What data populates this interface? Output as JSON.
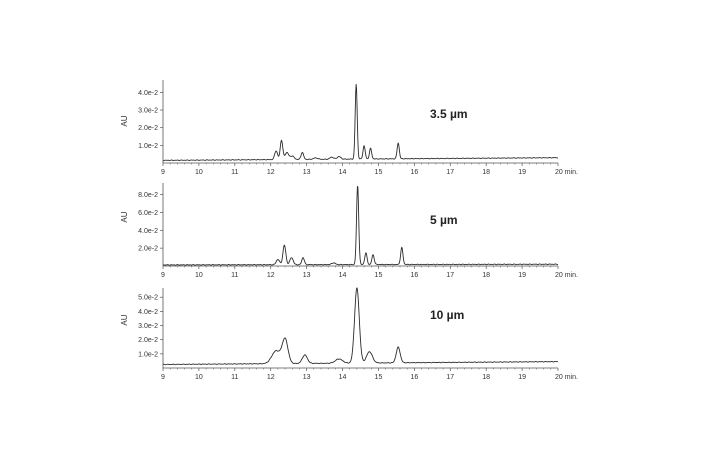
{
  "colors": {
    "trace": "#2b2b2b",
    "axis": "#555555"
  },
  "chart_data": [
    {
      "type": "line",
      "title": "3.5 µm",
      "ylabel": "AU",
      "xlim": [
        9,
        20
      ],
      "ylim": [
        0,
        0.047
      ],
      "x_ticks": [
        "9",
        "10",
        "11",
        "12",
        "13",
        "14",
        "15",
        "16",
        "17",
        "18",
        "19",
        "20 min."
      ],
      "y_ticks": [
        {
          "value": 0.01,
          "label": "1.0e-2"
        },
        {
          "value": 0.02,
          "label": "2.0e-2"
        },
        {
          "value": 0.03,
          "label": "3.0e-2"
        },
        {
          "value": 0.04,
          "label": "4.0e-2"
        }
      ],
      "baseline": {
        "start": 0.0015,
        "end": 0.003
      },
      "peaks": [
        {
          "x": 12.15,
          "height": 0.005,
          "width": 0.04
        },
        {
          "x": 12.3,
          "height": 0.011,
          "width": 0.035
        },
        {
          "x": 12.45,
          "height": 0.004,
          "width": 0.05
        },
        {
          "x": 12.6,
          "height": 0.002,
          "width": 0.05
        },
        {
          "x": 12.88,
          "height": 0.004,
          "width": 0.035
        },
        {
          "x": 13.25,
          "height": 0.0008,
          "width": 0.06
        },
        {
          "x": 13.7,
          "height": 0.0012,
          "width": 0.05
        },
        {
          "x": 13.9,
          "height": 0.0015,
          "width": 0.05
        },
        {
          "x": 14.38,
          "height": 0.0425,
          "width": 0.028
        },
        {
          "x": 14.6,
          "height": 0.0075,
          "width": 0.03
        },
        {
          "x": 14.78,
          "height": 0.006,
          "width": 0.03
        },
        {
          "x": 15.55,
          "height": 0.009,
          "width": 0.03
        }
      ]
    },
    {
      "type": "line",
      "title": "5 µm",
      "ylabel": "AU",
      "xlim": [
        9,
        20
      ],
      "ylim": [
        0,
        0.093
      ],
      "x_ticks": [
        "9",
        "10",
        "11",
        "12",
        "13",
        "14",
        "15",
        "16",
        "17",
        "18",
        "19",
        "20 min."
      ],
      "y_ticks": [
        {
          "value": 0.02,
          "label": "2.0e-2"
        },
        {
          "value": 0.04,
          "label": "4.0e-2"
        },
        {
          "value": 0.06,
          "label": "6.0e-2"
        },
        {
          "value": 0.08,
          "label": "8.0e-2"
        }
      ],
      "baseline": {
        "start": 0.0012,
        "end": 0.002
      },
      "peaks": [
        {
          "x": 12.2,
          "height": 0.006,
          "width": 0.045
        },
        {
          "x": 12.38,
          "height": 0.022,
          "width": 0.04
        },
        {
          "x": 12.58,
          "height": 0.008,
          "width": 0.045
        },
        {
          "x": 12.9,
          "height": 0.008,
          "width": 0.035
        },
        {
          "x": 13.75,
          "height": 0.002,
          "width": 0.05
        },
        {
          "x": 14.42,
          "height": 0.089,
          "width": 0.03
        },
        {
          "x": 14.65,
          "height": 0.013,
          "width": 0.032
        },
        {
          "x": 14.85,
          "height": 0.011,
          "width": 0.032
        },
        {
          "x": 15.65,
          "height": 0.019,
          "width": 0.032
        }
      ]
    },
    {
      "type": "line",
      "title": "10 µm",
      "ylabel": "AU",
      "xlim": [
        9,
        20
      ],
      "ylim": [
        0,
        0.0565
      ],
      "x_ticks": [
        "9",
        "10",
        "11",
        "12",
        "13",
        "14",
        "15",
        "16",
        "17",
        "18",
        "19",
        "20 min."
      ],
      "y_ticks": [
        {
          "value": 0.01,
          "label": "1.0e-2"
        },
        {
          "value": 0.02,
          "label": "2.0e-2"
        },
        {
          "value": 0.03,
          "label": "3.0e-2"
        },
        {
          "value": 0.04,
          "label": "4.0e-2"
        },
        {
          "value": 0.05,
          "label": "5.0e-2"
        }
      ],
      "baseline": {
        "start": 0.0025,
        "end": 0.0045
      },
      "peaks": [
        {
          "x": 12.15,
          "height": 0.009,
          "width": 0.12
        },
        {
          "x": 12.4,
          "height": 0.017,
          "width": 0.08
        },
        {
          "x": 12.95,
          "height": 0.006,
          "width": 0.07
        },
        {
          "x": 13.9,
          "height": 0.003,
          "width": 0.1
        },
        {
          "x": 14.4,
          "height": 0.053,
          "width": 0.065
        },
        {
          "x": 14.75,
          "height": 0.008,
          "width": 0.08
        },
        {
          "x": 15.55,
          "height": 0.011,
          "width": 0.055
        }
      ]
    }
  ]
}
